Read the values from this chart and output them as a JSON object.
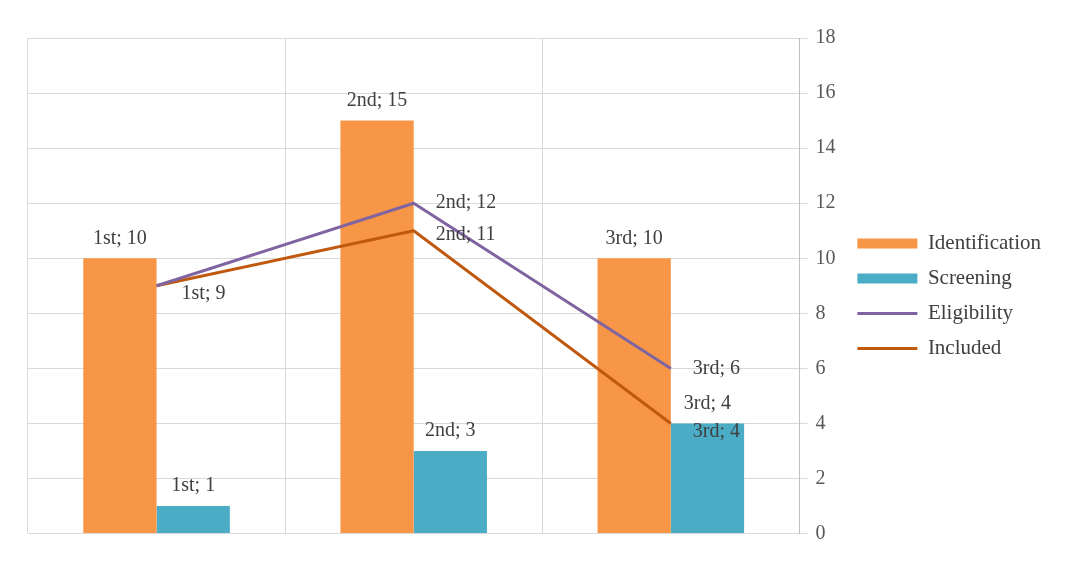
{
  "chart_data": {
    "type": "bar",
    "categories": [
      null,
      null,
      null
    ],
    "series": [
      {
        "name": "Identification",
        "color": "#f79646",
        "values": [
          10,
          15,
          10
        ],
        "value_labels": [
          "1st; 10",
          "2nd; 15",
          "3rd; 10"
        ]
      },
      {
        "name": "Screening",
        "color": "#4bacc6",
        "values": [
          1,
          3,
          4
        ],
        "value_labels": [
          "1st; 1",
          "2nd; 3",
          "3rd; 4"
        ]
      },
      {
        "name": "Eligibility",
        "type": "line",
        "color": "#8064a2",
        "values": [
          9,
          12,
          6
        ],
        "value_labels": [
          null,
          "2nd; 12",
          "3rd; 6"
        ]
      },
      {
        "name": "Included",
        "type": "line",
        "color": "#c0590e",
        "values": [
          9,
          11,
          4
        ],
        "value_labels": [
          "1st; 9",
          "2nd; 11",
          "3rd; 4"
        ]
      }
    ],
    "ylim": [
      0,
      18
    ],
    "yticks": [
      0,
      2,
      4,
      6,
      8,
      10,
      12,
      14,
      16,
      18
    ],
    "grid": true,
    "legend": "right",
    "marker": "none",
    "line_style": "solid"
  }
}
